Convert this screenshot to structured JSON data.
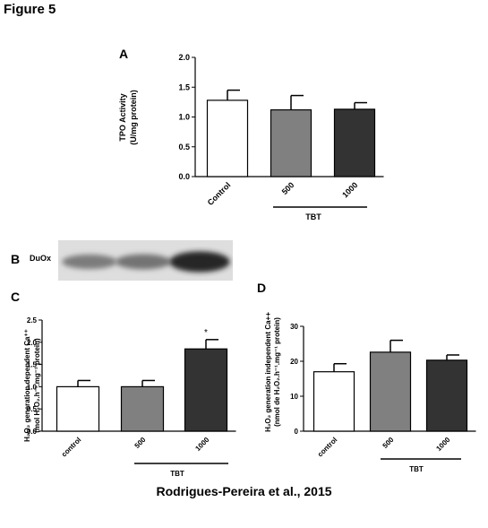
{
  "figure_title": "Figure 5",
  "footer": "Rodrigues-Pereira  et al., 2015",
  "panel_letters": {
    "A": "A",
    "B": "B",
    "C": "C",
    "D": "D"
  },
  "blot": {
    "label": "DuOx",
    "band_intensity": [
      0.45,
      0.5,
      0.95
    ]
  },
  "colors": {
    "control": "#ffffff",
    "tbt500": "#808080",
    "tbt1000": "#333333"
  },
  "chart_data": [
    {
      "id": "A",
      "type": "bar",
      "categories": [
        "Control",
        "500",
        "1000"
      ],
      "values": [
        1.28,
        1.12,
        1.13
      ],
      "errors": [
        0.17,
        0.24,
        0.11
      ],
      "ylabel_lines": [
        "TPO Activity",
        "(U/mg  protein)"
      ],
      "ylim": [
        0,
        2.0
      ],
      "yticks": [
        "0.0",
        "0.5",
        "1.0",
        "1.5",
        "2.0"
      ],
      "ytick_values": [
        0,
        0.5,
        1.0,
        1.5,
        2.0
      ],
      "group_label": "TBT",
      "significance": [
        "",
        "",
        ""
      ]
    },
    {
      "id": "C",
      "type": "bar",
      "categories": [
        "control",
        "500",
        "1000"
      ],
      "values": [
        1.0,
        1.0,
        1.85
      ],
      "errors": [
        0.14,
        0.14,
        0.21
      ],
      "ylabel_lines": [
        "H₂O₂ generation dependent Ca⁺⁺",
        "(mol H₂O₂.h⁻¹.mg⁻¹ protein)"
      ],
      "ylim": [
        0,
        2.5
      ],
      "yticks": [
        "0.0",
        "0.5",
        "1.0",
        "1.5",
        "2.0",
        "2.5"
      ],
      "ytick_values": [
        0,
        0.5,
        1.0,
        1.5,
        2.0,
        2.5
      ],
      "group_label": "TBT",
      "significance": [
        "",
        "",
        "*"
      ]
    },
    {
      "id": "D",
      "type": "bar",
      "categories": [
        "control",
        "500",
        "1000"
      ],
      "values": [
        17.0,
        22.6,
        20.3
      ],
      "errors": [
        2.3,
        3.4,
        1.5
      ],
      "ylabel_lines": [
        "H₂O₂ generation independent Ca++",
        "(nmol de H₂O₂.h⁻¹.mg⁻¹ protein)"
      ],
      "ylim": [
        0,
        30
      ],
      "yticks": [
        "0",
        "10",
        "20",
        "30"
      ],
      "ytick_values": [
        0,
        10,
        20,
        30
      ],
      "group_label": "TBT",
      "significance": [
        "",
        "",
        ""
      ]
    }
  ]
}
